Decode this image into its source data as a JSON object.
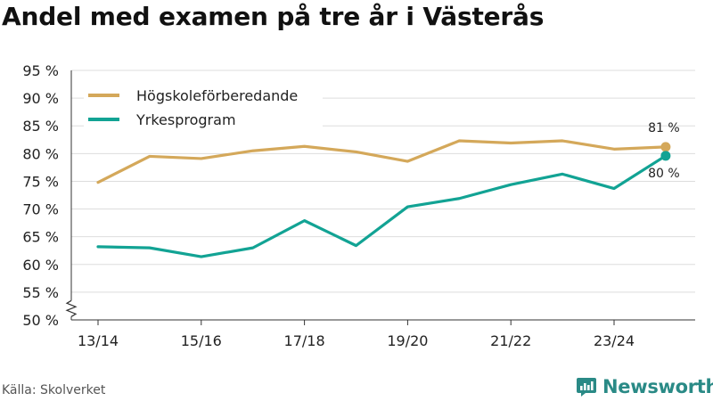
{
  "title": "Andel med examen på tre år i Västerås",
  "source": "Källa: Skolverket",
  "brand": {
    "name": "Newsworthy",
    "icon": "newsworthy-logo-icon",
    "color": "#2a8a86"
  },
  "chart_data": {
    "type": "line",
    "title": "Andel med examen på tre år i Västerås",
    "xlabel": "",
    "ylabel": "",
    "categories": [
      "13/14",
      "14/15",
      "15/16",
      "16/17",
      "17/18",
      "18/19",
      "19/20",
      "20/21",
      "21/22",
      "22/23",
      "23/24",
      "24/25"
    ],
    "x_tick_labels": [
      "13/14",
      "15/16",
      "17/18",
      "19/20",
      "21/22",
      "23/24"
    ],
    "y_ticks": [
      50,
      55,
      60,
      65,
      70,
      75,
      80,
      85,
      90,
      95
    ],
    "y_tick_labels": [
      "50 %",
      "55 %",
      "60 %",
      "65 %",
      "70 %",
      "75 %",
      "80 %",
      "85 %",
      "90 %",
      "95 %"
    ],
    "ylim": [
      50,
      95
    ],
    "axis_break": true,
    "grid": true,
    "legend_position": "top-left",
    "series": [
      {
        "name": "Högskoleförberedande",
        "color": "#d4a85a",
        "values": [
          74.8,
          79.5,
          79.1,
          80.5,
          81.3,
          80.3,
          78.6,
          82.3,
          81.9,
          82.3,
          80.8,
          81.2
        ],
        "end_label": "81 %"
      },
      {
        "name": "Yrkesprogram",
        "color": "#12a394",
        "values": [
          63.2,
          63.0,
          61.4,
          63.0,
          67.9,
          63.4,
          70.4,
          71.9,
          74.4,
          76.3,
          73.7,
          79.6
        ],
        "end_label": "80 %"
      }
    ]
  }
}
